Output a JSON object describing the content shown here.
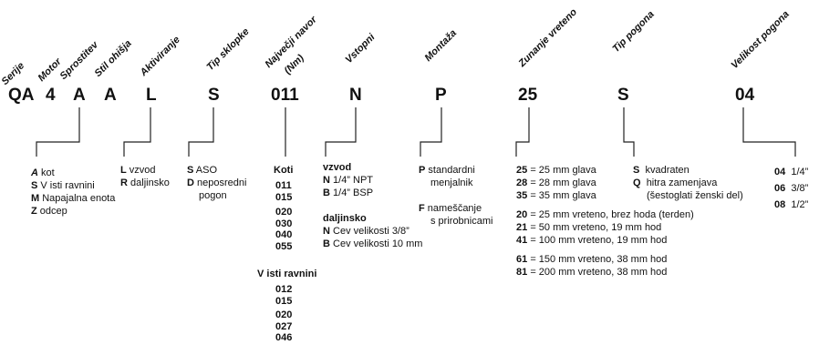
{
  "headers": {
    "serije": "Serije",
    "motor": "Motor",
    "sprostitev": "Sprostitev",
    "stil_ohisja": "Stil ohišja",
    "aktiviranje": "Aktiviranje",
    "tip_sklopke": "Tip sklopke",
    "navor_1": "Največji navor",
    "navor_2": "(Nm)",
    "vstopni": "Vstopni",
    "montaza": "Montaža",
    "zunanje_vreteno": "Zunanje vreteno",
    "tip_pogona": "Tip pogona",
    "velikost_pogona": "Velikost pogona"
  },
  "codes": {
    "qa": "QA",
    "four": "4",
    "a1": "A",
    "a2": "A",
    "l": "L",
    "s": "S",
    "n011": "011",
    "n": "N",
    "p": "P",
    "n25": "25",
    "s2": "S",
    "n04": "04"
  },
  "sprostitev": {
    "a_code": "A",
    "a_text": "kot",
    "s_code": "S",
    "s_text": "V isti ravnini",
    "m_code": "M",
    "m_text": "Napajalna enota",
    "z_code": "Z",
    "z_text": "odcep"
  },
  "aktiviranje": {
    "l_code": "L",
    "l_text": "vzvod",
    "r_code": "R",
    "r_text": "daljinsko"
  },
  "tip_sklopke": {
    "s_code": "S",
    "s_text": "ASO",
    "d_code": "D",
    "d_text_1": "neposredni",
    "d_text_2": "pogon"
  },
  "navor": {
    "koti": "Koti",
    "koti_values": [
      "011",
      "015",
      "020",
      "030",
      "040",
      "055"
    ],
    "isti": "V isti ravnini",
    "isti_values": [
      "012",
      "015",
      "020",
      "027",
      "046"
    ]
  },
  "vstopni": {
    "vzvod": "vzvod",
    "n1_code": "N",
    "n1_text": "1/4” NPT",
    "b1_code": "B",
    "b1_text": "1/4” BSP",
    "daljinsko": "daljinsko",
    "n2_code": "N",
    "n2_text": "Cev velikosti 3/8”",
    "b2_code": "B",
    "b2_text": "Cev velikosti 10 mm"
  },
  "montaza": {
    "p_code": "P",
    "p_text_1": "standardni",
    "p_text_2": "menjalnik",
    "f_code": "F",
    "f_text_1": "nameščanje",
    "f_text_2": "s prirobnicami"
  },
  "vreteno": {
    "r25_code": "25",
    "r25_text": "= 25 mm glava",
    "r28_code": "28",
    "r28_text": "= 28 mm glava",
    "r35_code": "35",
    "r35_text": "= 35 mm glava",
    "r20_code": "20",
    "r20_text": "=   25 mm vreteno, brez hoda (terden)",
    "r21_code": "21",
    "r21_text": "=   50 mm vreteno, 19 mm hod",
    "r41_code": "41",
    "r41_text": "= 100 mm vreteno, 19 mm hod",
    "r61_code": "61",
    "r61_text": "= 150 mm vreteno, 38 mm hod",
    "r81_code": "81",
    "r81_text": "= 200 mm vreteno, 38 mm hod"
  },
  "pogon": {
    "s_code": "S",
    "s_text": "kvadraten",
    "q_code": "Q",
    "q_text_1": "hitra zamenjava",
    "q_text_2": "(šestoglati ženski del)"
  },
  "velikost": {
    "v04_code": "04",
    "v04_text": "1/4”",
    "v06_code": "06",
    "v06_text": "3/8”",
    "v08_code": "08",
    "v08_text": "1/2”"
  }
}
